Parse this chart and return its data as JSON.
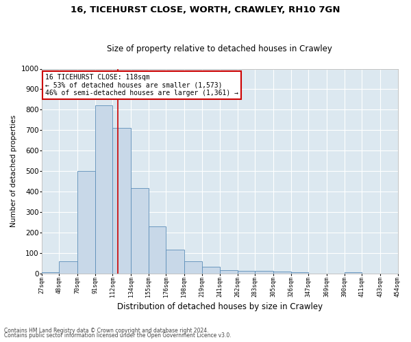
{
  "title1": "16, TICEHURST CLOSE, WORTH, CRAWLEY, RH10 7GN",
  "title2": "Size of property relative to detached houses in Crawley",
  "xlabel": "Distribution of detached houses by size in Crawley",
  "ylabel": "Number of detached properties",
  "footnote1": "Contains HM Land Registry data © Crown copyright and database right 2024.",
  "footnote2": "Contains public sector information licensed under the Open Government Licence v3.0.",
  "annotation_line1": "16 TICEHURST CLOSE: 118sqm",
  "annotation_line2": "← 53% of detached houses are smaller (1,573)",
  "annotation_line3": "46% of semi-detached houses are larger (1,361) →",
  "property_size": 118,
  "bin_edges": [
    27,
    48,
    70,
    91,
    112,
    134,
    155,
    176,
    198,
    219,
    241,
    262,
    283,
    305,
    326,
    347,
    369,
    390,
    411,
    433,
    454
  ],
  "bar_heights": [
    5,
    60,
    500,
    820,
    710,
    415,
    230,
    115,
    57,
    32,
    15,
    13,
    13,
    10,
    5,
    0,
    0,
    5,
    0,
    0
  ],
  "bar_color": "#c8d8e8",
  "bar_edge_color": "#5b8db8",
  "vline_color": "#cc0000",
  "vline_x": 118,
  "annotation_box_edge": "#cc0000",
  "fig_bg_color": "#ffffff",
  "plot_bg_color": "#dce8f0",
  "ylim": [
    0,
    1000
  ],
  "yticks": [
    0,
    100,
    200,
    300,
    400,
    500,
    600,
    700,
    800,
    900,
    1000
  ]
}
